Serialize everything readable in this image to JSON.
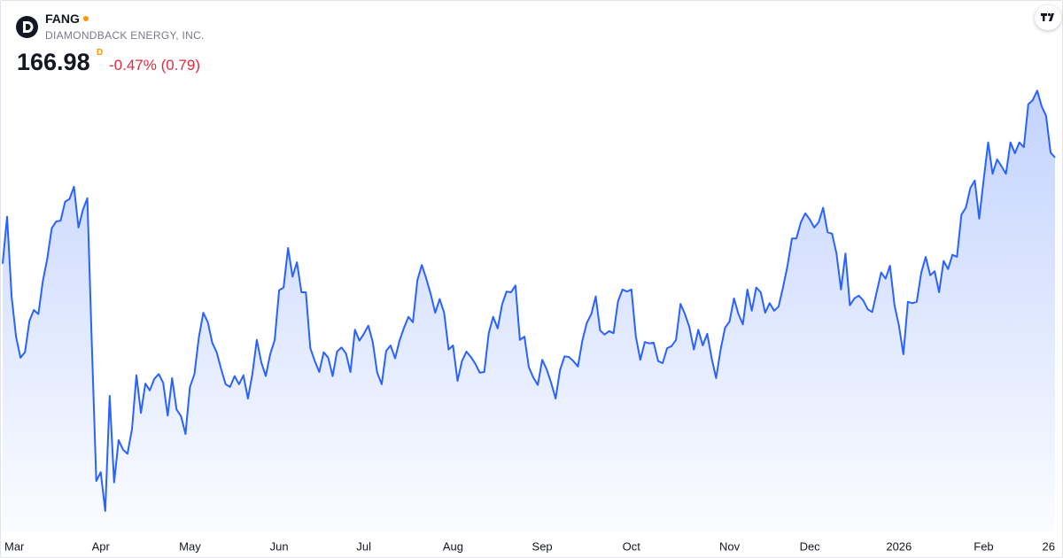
{
  "header": {
    "symbol": "FANG",
    "company": "DIAMONDBACK ENERGY, INC.",
    "price": "166.98",
    "marker": "D",
    "change": "-0.47% (0.79)"
  },
  "chart_data": {
    "type": "area",
    "color": "#2962ff",
    "values": [
      151.4,
      158.3,
      146.6,
      140.7,
      137.6,
      138.4,
      143.0,
      144.6,
      144.0,
      148.8,
      152.1,
      156.6,
      157.6,
      157.7,
      160.5,
      160.9,
      162.7,
      156.7,
      159.3,
      161.0,
      139.4,
      119.5,
      120.8,
      115.1,
      132.0,
      119.3,
      125.5,
      124.1,
      123.5,
      127.1,
      135.0,
      129.5,
      133.8,
      132.8,
      134.5,
      135.2,
      133.9,
      129.1,
      134.6,
      130.0,
      129.0,
      126.4,
      133.3,
      135.2,
      140.6,
      144.2,
      142.8,
      139.8,
      138.4,
      135.9,
      133.7,
      133.3,
      134.9,
      133.7,
      135.0,
      131.6,
      135.2,
      140.2,
      136.9,
      134.9,
      138.1,
      140.2,
      147.5,
      147.9,
      153.7,
      149.5,
      151.6,
      147.2,
      147.2,
      139.0,
      137.1,
      135.5,
      138.4,
      137.6,
      134.9,
      138.5,
      139.1,
      138.2,
      135.5,
      141.7,
      140.1,
      141.1,
      142.3,
      139.9,
      135.4,
      133.7,
      138.6,
      139.4,
      137.5,
      140.1,
      142.0,
      143.6,
      142.8,
      149.0,
      151.2,
      149.2,
      146.9,
      144.2,
      146.2,
      144.2,
      138.8,
      139.4,
      134.2,
      137.1,
      138.5,
      137.7,
      136.7,
      135.4,
      135.5,
      141.2,
      143.6,
      141.9,
      145.4,
      147.3,
      147.2,
      148.2,
      140.2,
      140.7,
      136.2,
      134.7,
      133.6,
      137.3,
      135.9,
      133.9,
      131.6,
      135.8,
      137.8,
      137.7,
      137.1,
      136.3,
      140.1,
      142.7,
      144.0,
      146.6,
      141.6,
      141.0,
      141.5,
      141.2,
      145.9,
      147.6,
      147.3,
      147.6,
      140.7,
      137.3,
      139.9,
      139.7,
      139.8,
      137.1,
      136.8,
      139.0,
      139.3,
      140.2,
      145.5,
      144.0,
      142.1,
      138.8,
      141.7,
      139.4,
      141.1,
      137.5,
      134.6,
      138.8,
      142.0,
      142.9,
      146.3,
      144.0,
      142.5,
      147.6,
      144.5,
      147.9,
      147.2,
      144.2,
      145.6,
      144.5,
      145.1,
      147.9,
      151.1,
      155.1,
      155.1,
      157.5,
      158.8,
      157.9,
      156.7,
      157.5,
      159.6,
      156.0,
      155.8,
      152.9,
      147.6,
      152.9,
      145.3,
      146.3,
      146.7,
      146.0,
      144.7,
      144.3,
      147.2,
      150.1,
      149.2,
      151.1,
      145.3,
      142.3,
      138.1,
      145.8,
      145.6,
      145.8,
      150.1,
      152.4,
      149.7,
      150.3,
      147.2,
      151.8,
      150.6,
      152.7,
      152.4,
      158.6,
      159.6,
      162.5,
      163.6,
      158.0,
      163.8,
      169.2,
      164.6,
      166.7,
      165.7,
      164.6,
      169.2,
      167.6,
      169.2,
      168.5,
      174.8,
      175.4,
      176.8,
      174.5,
      173.1,
      167.7,
      166.98
    ],
    "xlim": [
      0,
      236
    ],
    "xticks": [
      {
        "value": 0,
        "label": "Mar"
      },
      {
        "value": 22,
        "label": "Apr"
      },
      {
        "value": 42,
        "label": "May"
      },
      {
        "value": 62,
        "label": "Jun"
      },
      {
        "value": 81,
        "label": "Jul"
      },
      {
        "value": 101,
        "label": "Aug"
      },
      {
        "value": 121,
        "label": "Sep"
      },
      {
        "value": 141,
        "label": "Oct"
      },
      {
        "value": 163,
        "label": "Nov"
      },
      {
        "value": 181,
        "label": "Dec"
      },
      {
        "value": 201,
        "label": "2026"
      },
      {
        "value": 220,
        "label": "Feb"
      },
      {
        "value": 236,
        "label": "26"
      }
    ],
    "ylim": [
      112.1,
      190.1
    ]
  }
}
